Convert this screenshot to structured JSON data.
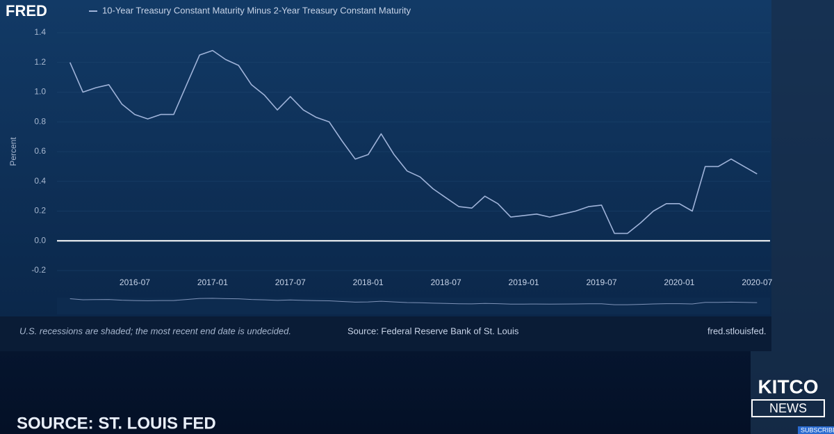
{
  "chart_data": {
    "type": "line",
    "brand": "FRED",
    "ylabel": "Percent",
    "x": [
      "2016-02",
      "2016-03",
      "2016-04",
      "2016-05",
      "2016-06",
      "2016-07",
      "2016-08",
      "2016-09",
      "2016-10",
      "2016-11",
      "2016-12",
      "2017-01",
      "2017-02",
      "2017-03",
      "2017-04",
      "2017-05",
      "2017-06",
      "2017-07",
      "2017-08",
      "2017-09",
      "2017-10",
      "2017-11",
      "2017-12",
      "2018-01",
      "2018-02",
      "2018-03",
      "2018-04",
      "2018-05",
      "2018-06",
      "2018-07",
      "2018-08",
      "2018-09",
      "2018-10",
      "2018-11",
      "2018-12",
      "2019-01",
      "2019-02",
      "2019-03",
      "2019-04",
      "2019-05",
      "2019-06",
      "2019-07",
      "2019-08",
      "2019-09",
      "2019-10",
      "2019-11",
      "2019-12",
      "2020-01",
      "2020-02",
      "2020-03",
      "2020-04",
      "2020-05",
      "2020-06",
      "2020-07"
    ],
    "series": [
      {
        "name": "10-Year Treasury Constant Maturity Minus 2-Year Treasury Constant Maturity",
        "color": "#9fb3d9",
        "values": [
          1.2,
          1.0,
          1.03,
          1.05,
          0.92,
          0.85,
          0.82,
          0.85,
          0.85,
          1.05,
          1.25,
          1.28,
          1.22,
          1.18,
          1.05,
          0.98,
          0.88,
          0.97,
          0.88,
          0.83,
          0.8,
          0.67,
          0.55,
          0.58,
          0.72,
          0.58,
          0.47,
          0.43,
          0.35,
          0.29,
          0.23,
          0.22,
          0.3,
          0.25,
          0.16,
          0.17,
          0.18,
          0.16,
          0.18,
          0.2,
          0.23,
          0.24,
          0.05,
          0.05,
          0.12,
          0.2,
          0.25,
          0.25,
          0.2,
          0.5,
          0.5,
          0.55,
          0.5,
          0.45
        ]
      }
    ],
    "xlim": [
      "2016-01",
      "2020-08"
    ],
    "xticks": [
      "2016-07",
      "2017-01",
      "2017-07",
      "2018-01",
      "2018-07",
      "2019-01",
      "2019-07",
      "2020-01",
      "2020-07"
    ],
    "ylim": [
      -0.2,
      1.4
    ],
    "yticks": [
      -0.2,
      {
        "value": 0,
        "label": "0.0"
      },
      0.2,
      0.4,
      0.6,
      0.8,
      {
        "value": 1,
        "label": "1.0"
      },
      1.2,
      1.4
    ],
    "zero_line": true,
    "note": "U.S. recessions are shaded; the most recent end date is undecided.",
    "source": "Source: Federal Reserve Bank of St. Louis",
    "url": "fred.stlouisfed."
  },
  "overlay": {
    "caption": "SOURCE: ST. LOUIS FED",
    "logo_top": "KITCO",
    "logo_bottom": "NEWS",
    "button": "SUBSCRIBE"
  }
}
